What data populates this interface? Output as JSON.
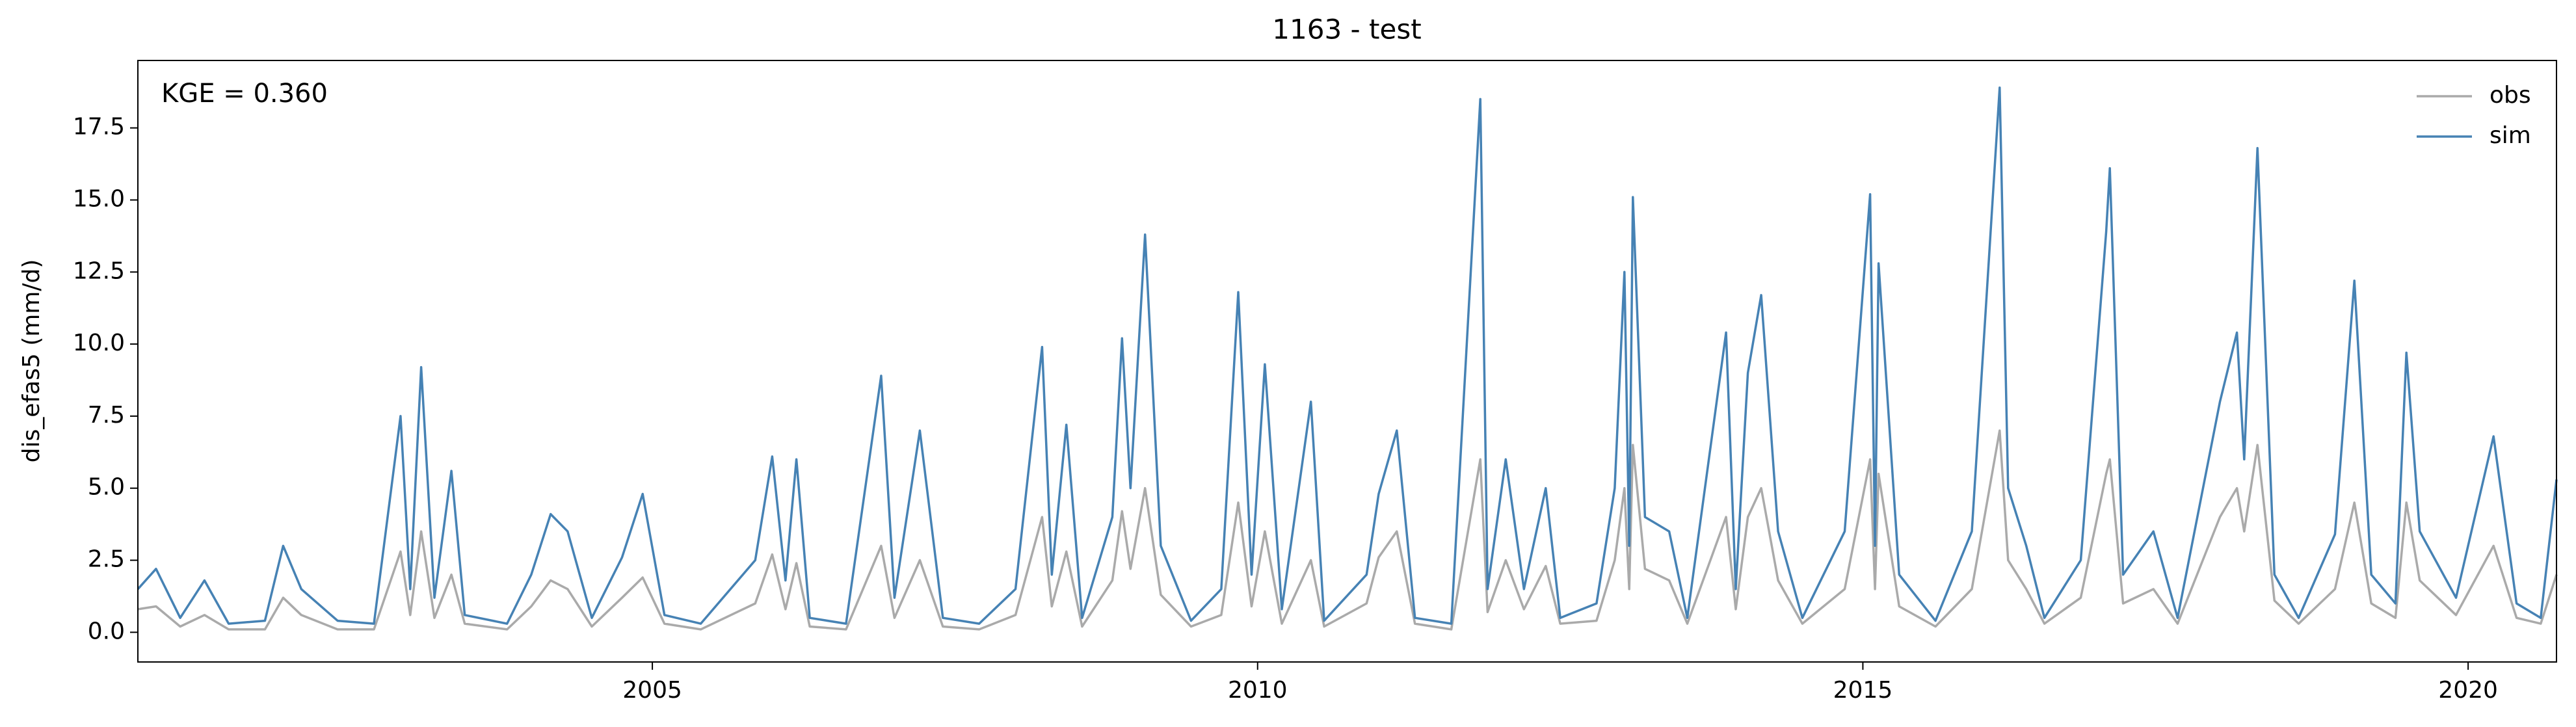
{
  "chart_data": {
    "type": "line",
    "title": "1163 - test",
    "ylabel": "dis_efas5 (mm/d)",
    "annotation": "KGE = 0.360",
    "x": [
      2000.75,
      2000.9,
      2001.1,
      2001.3,
      2001.5,
      2001.8,
      2001.95,
      2002.1,
      2002.4,
      2002.7,
      2002.92,
      2003.0,
      2003.09,
      2003.2,
      2003.34,
      2003.45,
      2003.8,
      2004.0,
      2004.16,
      2004.3,
      2004.5,
      2004.75,
      2004.92,
      2005.1,
      2005.4,
      2005.85,
      2005.99,
      2006.1,
      2006.19,
      2006.3,
      2006.6,
      2006.89,
      2007.0,
      2007.21,
      2007.4,
      2007.7,
      2008.0,
      2008.22,
      2008.3,
      2008.42,
      2008.55,
      2008.8,
      2008.88,
      2008.95,
      2009.07,
      2009.2,
      2009.45,
      2009.7,
      2009.84,
      2009.95,
      2010.06,
      2010.2,
      2010.44,
      2010.55,
      2010.9,
      2011.0,
      2011.15,
      2011.3,
      2011.6,
      2011.84,
      2011.9,
      2012.05,
      2012.2,
      2012.38,
      2012.5,
      2012.8,
      2012.95,
      2013.03,
      2013.07,
      2013.1,
      2013.2,
      2013.4,
      2013.55,
      2013.87,
      2013.95,
      2014.05,
      2014.16,
      2014.3,
      2014.5,
      2014.85,
      2015.06,
      2015.1,
      2015.13,
      2015.3,
      2015.6,
      2015.9,
      2016.13,
      2016.2,
      2016.35,
      2016.5,
      2016.8,
      2017.01,
      2017.04,
      2017.15,
      2017.4,
      2017.6,
      2017.95,
      2018.09,
      2018.15,
      2018.26,
      2018.4,
      2018.6,
      2018.9,
      2019.06,
      2019.2,
      2019.4,
      2019.49,
      2019.6,
      2019.9,
      2020.21,
      2020.4,
      2020.6,
      2020.73
    ],
    "series": [
      {
        "name": "obs",
        "color": "#aaaaaa",
        "values": [
          0.8,
          0.9,
          0.2,
          0.6,
          0.1,
          0.1,
          1.2,
          0.6,
          0.1,
          0.1,
          2.8,
          0.6,
          3.5,
          0.5,
          2.0,
          0.3,
          0.1,
          0.9,
          1.8,
          1.5,
          0.2,
          1.2,
          1.9,
          0.3,
          0.1,
          1.0,
          2.7,
          0.8,
          2.4,
          0.2,
          0.1,
          3.0,
          0.5,
          2.5,
          0.2,
          0.1,
          0.6,
          4.0,
          0.9,
          2.8,
          0.2,
          1.8,
          4.2,
          2.2,
          5.0,
          1.3,
          0.2,
          0.6,
          4.5,
          0.9,
          3.5,
          0.3,
          2.5,
          0.2,
          1.0,
          2.6,
          3.5,
          0.3,
          0.1,
          6.0,
          0.7,
          2.5,
          0.8,
          2.3,
          0.3,
          0.4,
          2.5,
          5.0,
          1.5,
          6.5,
          2.2,
          1.8,
          0.3,
          4.0,
          0.8,
          4.0,
          5.0,
          1.8,
          0.3,
          1.5,
          6.0,
          1.5,
          5.5,
          0.9,
          0.2,
          1.5,
          7.0,
          2.5,
          1.5,
          0.3,
          1.2,
          5.5,
          6.0,
          1.0,
          1.5,
          0.3,
          4.0,
          5.0,
          3.5,
          6.5,
          1.1,
          0.3,
          1.5,
          4.5,
          1.0,
          0.5,
          4.5,
          1.8,
          0.6,
          3.0,
          0.5,
          0.3,
          2.0
        ]
      },
      {
        "name": "sim",
        "color": "#4682b4",
        "values": [
          1.5,
          2.2,
          0.5,
          1.8,
          0.3,
          0.4,
          3.0,
          1.5,
          0.4,
          0.3,
          7.5,
          1.5,
          9.2,
          1.2,
          5.6,
          0.6,
          0.3,
          2.0,
          4.1,
          3.5,
          0.5,
          2.6,
          4.8,
          0.6,
          0.3,
          2.5,
          6.1,
          1.8,
          6.0,
          0.5,
          0.3,
          8.9,
          1.2,
          7.0,
          0.5,
          0.3,
          1.5,
          9.9,
          2.0,
          7.2,
          0.5,
          4.0,
          10.2,
          5.0,
          13.8,
          3.0,
          0.4,
          1.5,
          11.8,
          2.0,
          9.3,
          0.8,
          8.0,
          0.4,
          2.0,
          4.8,
          7.0,
          0.5,
          0.3,
          18.5,
          1.5,
          6.0,
          1.5,
          5.0,
          0.5,
          1.0,
          5.0,
          12.5,
          3.0,
          15.1,
          4.0,
          3.5,
          0.5,
          10.4,
          1.5,
          9.0,
          11.7,
          3.5,
          0.5,
          3.5,
          15.2,
          3.0,
          12.8,
          2.0,
          0.4,
          3.5,
          18.9,
          5.0,
          3.0,
          0.5,
          2.5,
          13.9,
          16.1,
          2.0,
          3.5,
          0.5,
          8.0,
          10.4,
          6.0,
          16.8,
          2.0,
          0.5,
          3.4,
          12.2,
          2.0,
          1.0,
          9.7,
          3.5,
          1.2,
          6.8,
          1.0,
          0.5,
          5.3
        ]
      }
    ],
    "xlim": [
      2000.75,
      2020.73
    ],
    "xticks": [
      2005,
      2010,
      2015,
      2020
    ],
    "ylim": [
      -1.03,
      19.84
    ],
    "yticks": [
      {
        "value": 0,
        "label": "0.0"
      },
      2.5,
      {
        "value": 5,
        "label": "5.0"
      },
      7.5,
      {
        "value": 10,
        "label": "10.0"
      },
      12.5,
      {
        "value": 15,
        "label": "15.0"
      },
      17.5
    ],
    "legend": "upper right",
    "grid": false
  }
}
